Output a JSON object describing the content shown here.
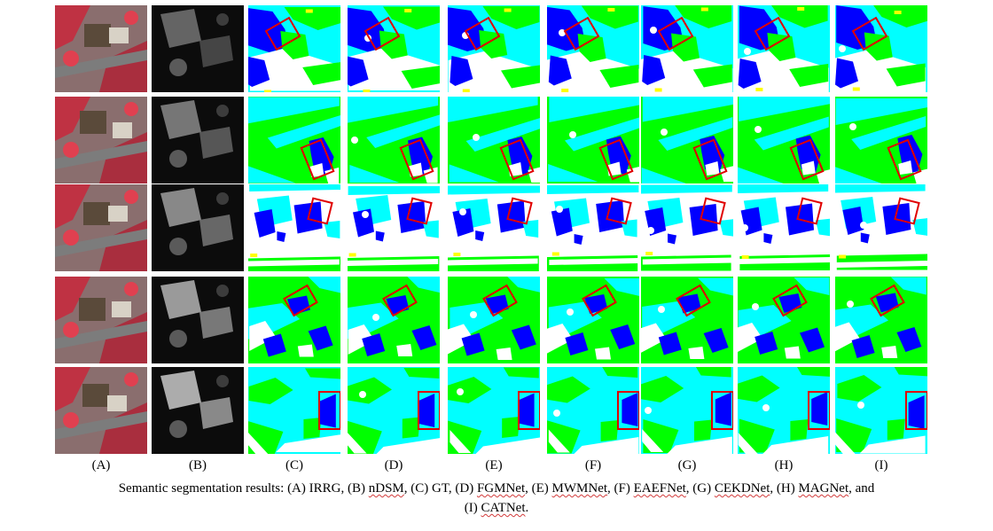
{
  "figure": {
    "column_labels": [
      "(A)",
      "(B)",
      "(C)",
      "(D)",
      "(E)",
      "(F)",
      "(G)",
      "(H)",
      "(I)"
    ],
    "rows": 5,
    "columns": 9,
    "palette": {
      "impervious_surface": "#ffffff",
      "building": "#0000ff",
      "low_vegetation": "#00ffff",
      "tree": "#00ff00",
      "car": "#ffff00",
      "highlight_box": "#e00000"
    }
  },
  "caption": {
    "prefix": "Semantic segmentation results: (A) IRRG, (B) ",
    "ndsm": "nDSM",
    "c_gt": ", (C) GT, (D) ",
    "fgmnet": "FGMNet",
    "e_label": ", (E) ",
    "mwmnet": "MWMNet",
    "f_label": ", (F) ",
    "eaefnet": "EAEFNet",
    "g_label": ", (G) ",
    "cekdnet": "CEKDNet",
    "h_label": ", (H) ",
    "magnet": "MAGNet",
    "and_text": ", and",
    "i_label": "(I) ",
    "catnet": "CATNet",
    "end": "."
  }
}
